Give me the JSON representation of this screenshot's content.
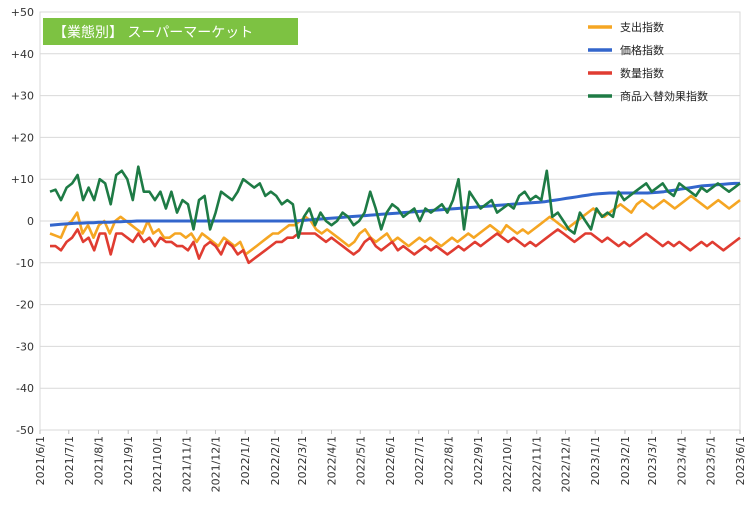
{
  "chart_data": {
    "type": "line",
    "title": "【業態別】 スーパーマーケット",
    "title_bg": "#7dc242",
    "ylim": [
      -50,
      50
    ],
    "y_ticks": [
      {
        "v": 50,
        "label": "+50"
      },
      {
        "v": 40,
        "label": "+40"
      },
      {
        "v": 30,
        "label": "+30"
      },
      {
        "v": 20,
        "label": "+20"
      },
      {
        "v": 10,
        "label": "+10"
      },
      {
        "v": 0,
        "label": "0"
      },
      {
        "v": -10,
        "label": "-10"
      },
      {
        "v": -20,
        "label": "-20"
      },
      {
        "v": -30,
        "label": "-30"
      },
      {
        "v": -40,
        "label": "-40"
      },
      {
        "v": -50,
        "label": "-50"
      }
    ],
    "x_ticks": [
      "2021/6/1",
      "2021/7/1",
      "2021/8/1",
      "2021/9/1",
      "2021/10/1",
      "2021/11/1",
      "2021/12/1",
      "2022/1/1",
      "2022/2/1",
      "2022/3/1",
      "2022/4/1",
      "2022/5/1",
      "2022/6/1",
      "2022/7/1",
      "2022/8/1",
      "2022/9/1",
      "2022/10/1",
      "2022/11/1",
      "2022/12/1",
      "2023/1/1",
      "2023/2/1",
      "2023/3/1",
      "2023/4/1",
      "2023/5/1",
      "2023/6/1"
    ],
    "x_start": "2021/6/1",
    "x_end": "2023/6/1",
    "grid": true,
    "legend_position": "top-right",
    "series": [
      {
        "name": "支出指数",
        "color": "#f5a623",
        "values": [
          -3,
          -3.5,
          -4,
          -1,
          0,
          2,
          -3,
          -1,
          -4,
          -1,
          0,
          -3,
          0,
          1,
          0,
          -1,
          -2,
          -3,
          0,
          -3,
          -2,
          -4,
          -4,
          -3,
          -3,
          -4,
          -3,
          -5,
          -3,
          -4,
          -5,
          -6,
          -4,
          -5,
          -6,
          -5,
          -8,
          -7,
          -6,
          -5,
          -4,
          -3,
          -3,
          -2,
          -1,
          -1,
          0,
          1,
          0,
          -2,
          -3,
          -2,
          -3,
          -4,
          -5,
          -6,
          -5,
          -3,
          -2,
          -4,
          -5,
          -4,
          -3,
          -5,
          -4,
          -5,
          -6,
          -5,
          -4,
          -5,
          -4,
          -5,
          -6,
          -5,
          -4,
          -5,
          -4,
          -3,
          -4,
          -3,
          -2,
          -1,
          -2,
          -3,
          -1,
          -2,
          -3,
          -2,
          -3,
          -2,
          -1,
          0,
          1,
          0,
          -1,
          -2,
          -1,
          0,
          1,
          2,
          3,
          2,
          1,
          2,
          3,
          4,
          3,
          2,
          4,
          5,
          4,
          3,
          4,
          5,
          4,
          3,
          4,
          5,
          6,
          5,
          4,
          3,
          4,
          5,
          4,
          3,
          4,
          5
        ]
      },
      {
        "name": "価格指数",
        "color": "#3366cc",
        "values": [
          -1,
          -0.9,
          -0.8,
          -0.7,
          -0.6,
          -0.5,
          -0.5,
          -0.4,
          -0.4,
          -0.3,
          -0.3,
          -0.3,
          -0.2,
          -0.2,
          -0.1,
          -0.1,
          0,
          0,
          0,
          0,
          0,
          0,
          0,
          0,
          0,
          0,
          0,
          0,
          0,
          0,
          0,
          0,
          0,
          0,
          0,
          0,
          0,
          0,
          0,
          0,
          0,
          0,
          0,
          0,
          0,
          0,
          0.1,
          0.2,
          0.3,
          0.4,
          0.5,
          0.6,
          0.7,
          0.8,
          0.9,
          1,
          1.1,
          1.2,
          1.3,
          1.4,
          1.5,
          1.6,
          1.7,
          1.8,
          1.9,
          2,
          2.1,
          2.2,
          2.3,
          2.4,
          2.5,
          2.6,
          2.7,
          2.8,
          2.9,
          3,
          3.1,
          3.2,
          3.3,
          3.4,
          3.5,
          3.6,
          3.7,
          3.8,
          3.9,
          4,
          4.1,
          4.2,
          4.3,
          4.4,
          4.5,
          4.6,
          4.8,
          5,
          5.2,
          5.4,
          5.6,
          5.8,
          6,
          6.2,
          6.4,
          6.5,
          6.6,
          6.7,
          6.7,
          6.7,
          6.7,
          6.7,
          6.7,
          6.7,
          6.7,
          6.8,
          6.9,
          7,
          7.2,
          7.4,
          7.6,
          7.8,
          8,
          8.2,
          8.4,
          8.5,
          8.6,
          8.7,
          8.8,
          8.9,
          9,
          9
        ]
      },
      {
        "name": "数量指数",
        "color": "#e03c31",
        "values": [
          -6,
          -6,
          -7,
          -5,
          -4,
          -2,
          -5,
          -4,
          -7,
          -3,
          -3,
          -8,
          -3,
          -3,
          -4,
          -5,
          -3,
          -5,
          -4,
          -6,
          -4,
          -5,
          -5,
          -6,
          -6,
          -7,
          -5,
          -9,
          -6,
          -5,
          -6,
          -8,
          -5,
          -6,
          -8,
          -7,
          -10,
          -9,
          -8,
          -7,
          -6,
          -5,
          -5,
          -4,
          -4,
          -3,
          -3,
          -3,
          -3,
          -4,
          -5,
          -4,
          -5,
          -6,
          -7,
          -8,
          -7,
          -5,
          -4,
          -6,
          -7,
          -6,
          -5,
          -7,
          -6,
          -7,
          -8,
          -7,
          -6,
          -7,
          -6,
          -7,
          -8,
          -7,
          -6,
          -7,
          -6,
          -5,
          -6,
          -5,
          -4,
          -3,
          -4,
          -5,
          -4,
          -5,
          -6,
          -5,
          -6,
          -5,
          -4,
          -3,
          -2,
          -3,
          -4,
          -5,
          -4,
          -3,
          -3,
          -4,
          -5,
          -4,
          -5,
          -6,
          -5,
          -6,
          -5,
          -4,
          -3,
          -4,
          -5,
          -6,
          -5,
          -6,
          -5,
          -6,
          -7,
          -6,
          -5,
          -6,
          -5,
          -6,
          -7,
          -6,
          -5,
          -4
        ]
      },
      {
        "name": "商品入替効果指数",
        "color": "#1e7b45",
        "values": [
          7,
          7.5,
          5,
          8,
          9,
          11,
          5,
          8,
          5,
          10,
          9,
          4,
          11,
          12,
          10,
          5,
          13,
          7,
          7,
          5,
          7,
          3,
          7,
          2,
          5,
          4,
          -2,
          5,
          6,
          -2,
          2,
          7,
          6,
          5,
          7,
          10,
          9,
          8,
          9,
          6,
          7,
          6,
          4,
          5,
          4,
          -4,
          1,
          3,
          -1,
          2,
          0,
          -1,
          0,
          2,
          1,
          -1,
          0,
          2,
          7,
          3,
          -2,
          2,
          4,
          3,
          1,
          2,
          3,
          0,
          3,
          2,
          3,
          4,
          2,
          5,
          10,
          -2,
          7,
          5,
          3,
          4,
          5,
          2,
          3,
          4,
          3,
          6,
          7,
          5,
          6,
          5,
          12,
          1,
          2,
          0,
          -2,
          -3,
          2,
          0,
          -2,
          3,
          1,
          2,
          1,
          7,
          5,
          6,
          7,
          8,
          9,
          7,
          8,
          9,
          7,
          6,
          9,
          8,
          7,
          6,
          8,
          7,
          8,
          9,
          8,
          7,
          8,
          9
        ]
      }
    ]
  }
}
